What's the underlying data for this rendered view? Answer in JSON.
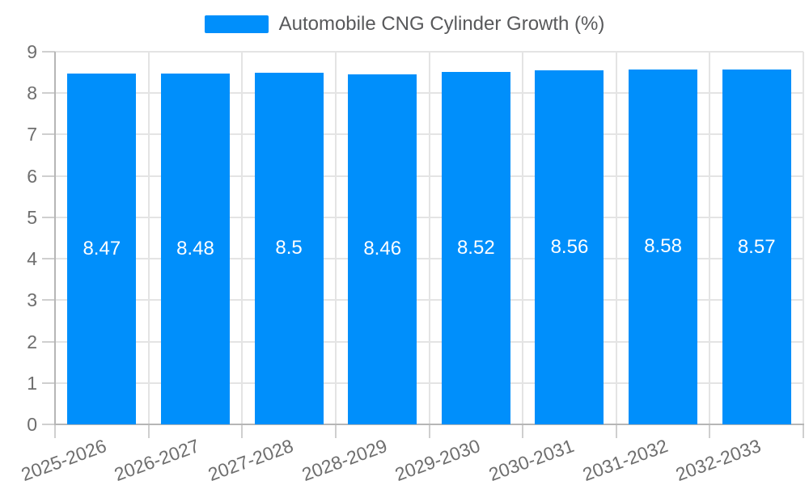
{
  "legend": {
    "label": "Automobile CNG Cylinder Growth (%)"
  },
  "colors": {
    "bar": "#008FFB",
    "grid": "#e4e4e4",
    "axis": "#b6b6b6",
    "tick": "#cfcfcf",
    "label": "#6e6e6e",
    "legend_text": "#58595b",
    "data_label": "#ffffff",
    "background": "#ffffff"
  },
  "chart_data": {
    "type": "bar",
    "title": "Automobile CNG Cylinder Growth (%)",
    "xlabel": "",
    "ylabel": "",
    "categories": [
      "2025-2026",
      "2026-2027",
      "2027-2028",
      "2028-2029",
      "2029-2030",
      "2030-2031",
      "2031-2032",
      "2032-2033"
    ],
    "values": [
      8.47,
      8.48,
      8.5,
      8.46,
      8.52,
      8.56,
      8.58,
      8.57
    ],
    "series": [
      {
        "name": "Automobile CNG Cylinder Growth (%)",
        "values": [
          8.47,
          8.48,
          8.5,
          8.46,
          8.52,
          8.56,
          8.58,
          8.57
        ]
      }
    ],
    "y_ticks": [
      0,
      1,
      2,
      3,
      4,
      5,
      6,
      7,
      8,
      9
    ],
    "ylim": [
      0,
      9
    ],
    "grid": true,
    "legend_position": "top",
    "data_labels_inside_bars": true
  }
}
